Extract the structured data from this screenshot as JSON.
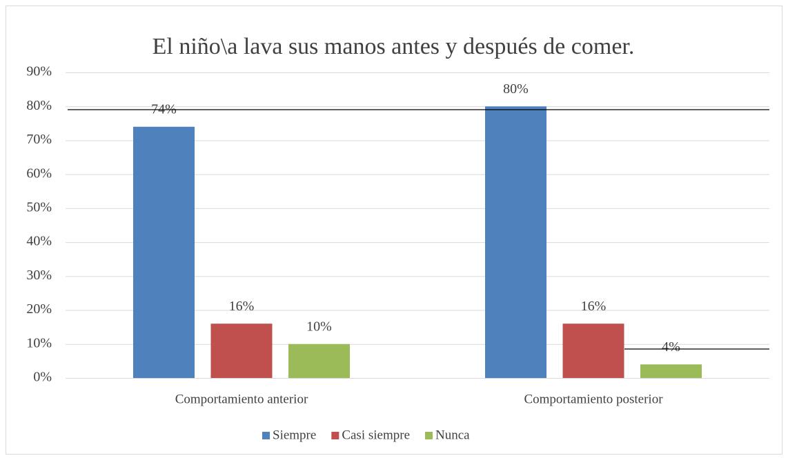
{
  "chart_data": {
    "type": "bar",
    "title": "El niño\\a lava sus manos antes y después de comer.",
    "categories": [
      "Comportamiento anterior",
      "Comportamiento posterior"
    ],
    "series": [
      {
        "name": "Siempre",
        "color": "#4f81bd",
        "values": [
          74,
          80
        ],
        "value_labels": [
          "74%",
          "80%"
        ]
      },
      {
        "name": "Casi siempre",
        "color": "#c0504d",
        "values": [
          16,
          16
        ],
        "value_labels": [
          "16%",
          "16%"
        ]
      },
      {
        "name": "Nunca",
        "color": "#9bbb59",
        "values": [
          10,
          4
        ],
        "value_labels": [
          "10%",
          "4%"
        ]
      }
    ],
    "ylim": [
      0,
      90
    ],
    "yticks": [
      {
        "value": 0,
        "label": "0%"
      },
      {
        "value": 10,
        "label": "10%"
      },
      {
        "value": 20,
        "label": "20%"
      },
      {
        "value": 30,
        "label": "30%"
      },
      {
        "value": 40,
        "label": "40%"
      },
      {
        "value": 50,
        "label": "50%"
      },
      {
        "value": 60,
        "label": "60%"
      },
      {
        "value": 70,
        "label": "70%"
      },
      {
        "value": 80,
        "label": "80%"
      },
      {
        "value": 90,
        "label": "90%"
      }
    ],
    "grid": true,
    "legend": "bottom"
  }
}
